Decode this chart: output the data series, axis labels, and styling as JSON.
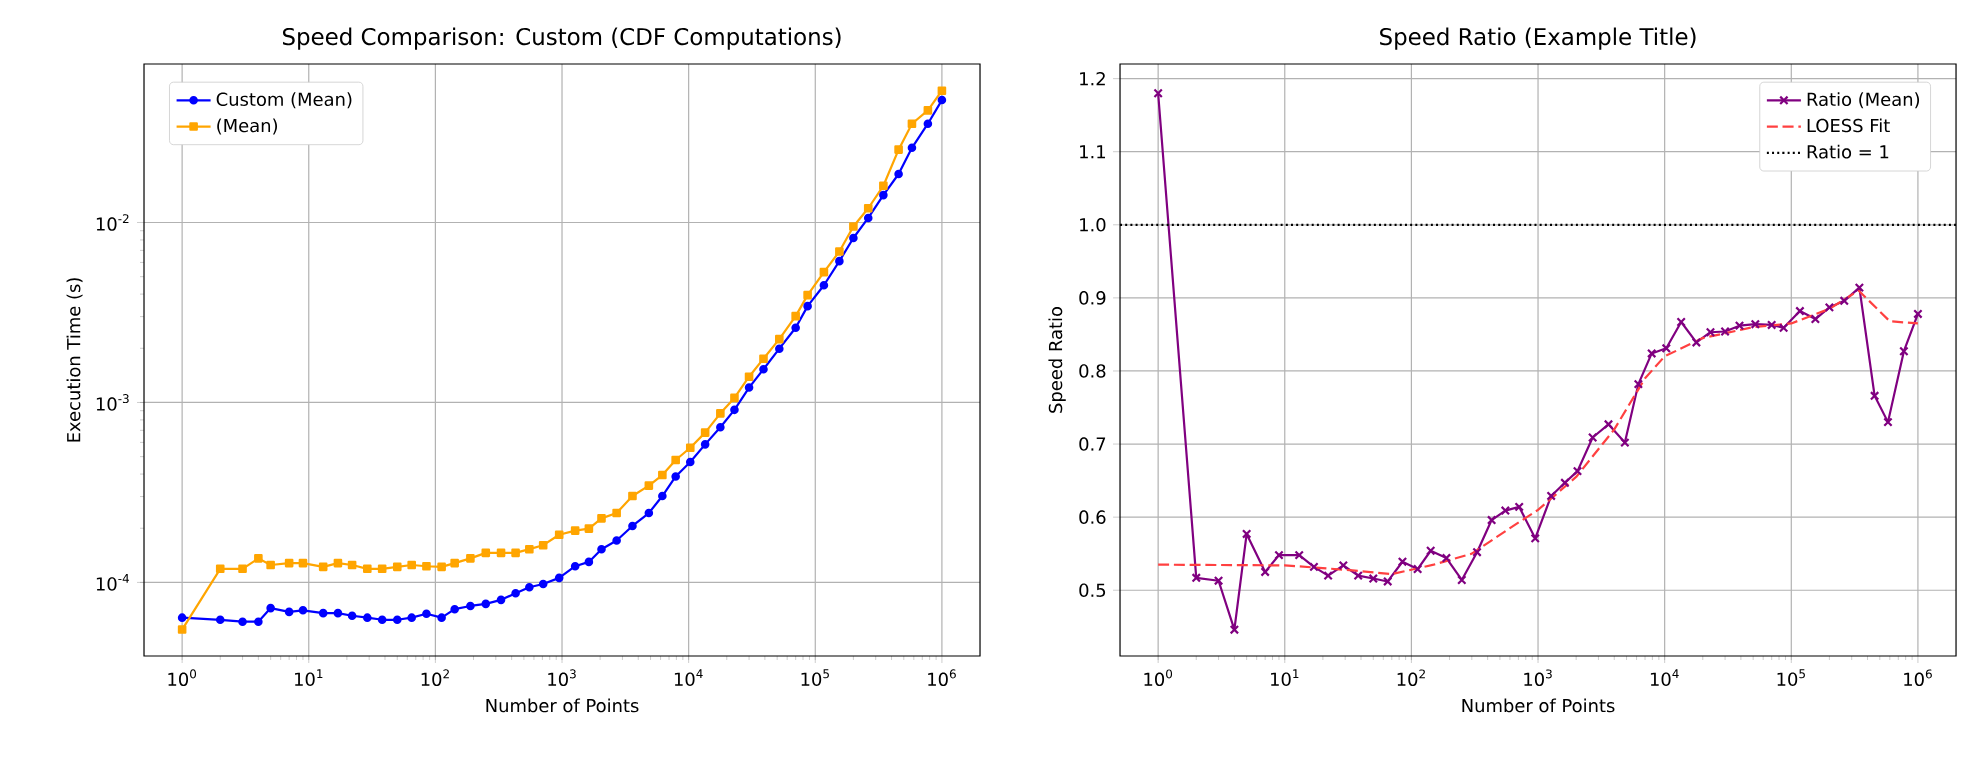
{
  "chart_data": [
    {
      "type": "line",
      "title": "Speed Comparison: Custom (CDF Computations)",
      "xlabel": "Number of Points",
      "ylabel": "Execution Time (s)",
      "x": [
        1,
        2,
        3,
        4,
        5,
        7,
        9,
        13,
        17,
        22,
        29,
        38,
        50,
        65,
        85,
        112,
        142,
        189,
        250,
        330,
        430,
        552,
        710,
        950,
        1270,
        1630,
        2050,
        2700,
        3600,
        4850,
        6200,
        7900,
        10300,
        13500,
        17800,
        23000,
        30000,
        39000,
        52000,
        70000,
        87000,
        117000,
        155000,
        200000,
        262000,
        345000,
        455000,
        580000,
        775000,
        1000000
      ],
      "series": [
        {
          "name": "Custom (Mean)",
          "color": "#0000ff",
          "marker": "circle",
          "values": [
            6.37e-05,
            6.2e-05,
            6.05e-05,
            6.05e-05,
            7.2e-05,
            6.86e-05,
            7e-05,
            6.75e-05,
            6.75e-05,
            6.53e-05,
            6.37e-05,
            6.2e-05,
            6.2e-05,
            6.37e-05,
            6.7e-05,
            6.37e-05,
            7.1e-05,
            7.4e-05,
            7.6e-05,
            8e-05,
            8.7e-05,
            9.4e-05,
            9.8e-05,
            0.000106,
            0.000123,
            0.00013,
            0.000153,
            0.000171,
            0.000206,
            0.000243,
            0.000302,
            0.000388,
            0.000467,
            0.000585,
            0.000728,
            0.00091,
            0.00121,
            0.00153,
            0.00199,
            0.0026,
            0.00343,
            0.00448,
            0.0061,
            0.0082,
            0.0106,
            0.0142,
            0.0186,
            0.026,
            0.0354,
            0.0479
          ]
        },
        {
          "name": "(Mean)",
          "color": "#ffa500",
          "marker": "square",
          "values": [
            5.47e-05,
            0.000119,
            0.000119,
            0.000136,
            0.000125,
            0.000128,
            0.000128,
            0.000122,
            0.000128,
            0.000125,
            0.000119,
            0.000119,
            0.000122,
            0.000125,
            0.000123,
            0.000122,
            0.000128,
            0.000136,
            0.000146,
            0.000146,
            0.000146,
            0.000153,
            0.000161,
            0.000184,
            0.000194,
            0.000199,
            0.000227,
            0.000243,
            0.000302,
            0.000345,
            0.000395,
            0.000479,
            0.00056,
            0.00068,
            0.00087,
            0.00106,
            0.00139,
            0.00175,
            0.00225,
            0.00302,
            0.00395,
            0.0053,
            0.0069,
            0.0095,
            0.012,
            0.016,
            0.0254,
            0.0354,
            0.042,
            0.054
          ]
        }
      ],
      "log": "xy",
      "xlim": [
        0.5,
        2000000
      ],
      "ylim": [
        3.9e-05,
        0.076
      ],
      "xticks": [
        {
          "value": 1,
          "label": "10$^{0}$"
        },
        {
          "value": 10,
          "label": "10$^{1}$"
        },
        {
          "value": 100,
          "label": "10$^{2}$"
        },
        {
          "value": 1000,
          "label": "10$^{3}$"
        },
        {
          "value": 10000,
          "label": "10$^{4}$"
        },
        {
          "value": 100000,
          "label": "10$^{5}$"
        },
        {
          "value": 1000000,
          "label": "10$^{6}$"
        }
      ],
      "yticks": [
        {
          "value": 0.0001,
          "label": "10$^{-4}$"
        },
        {
          "value": 0.001,
          "label": "10$^{-3}$"
        },
        {
          "value": 0.01,
          "label": "10$^{-2}$"
        }
      ],
      "grid": true,
      "legend": "top left"
    },
    {
      "type": "line",
      "title": "Speed Ratio (Example Title)",
      "xlabel": "Number of Points",
      "ylabel": "Speed Ratio",
      "x": [
        1,
        2,
        3,
        4,
        5,
        7,
        9,
        13,
        17,
        22,
        29,
        38,
        50,
        65,
        85,
        112,
        142,
        189,
        250,
        330,
        430,
        552,
        710,
        950,
        1270,
        1630,
        2050,
        2700,
        3600,
        4850,
        6200,
        7900,
        10300,
        13500,
        17800,
        23000,
        30000,
        39000,
        52000,
        70000,
        87000,
        117000,
        155000,
        200000,
        262000,
        345000,
        455000,
        580000,
        775000,
        1000000
      ],
      "series": [
        {
          "name": "Ratio (Mean)",
          "color": "#800080",
          "marker": "cross",
          "values": [
            1.18,
            0.517,
            0.513,
            0.446,
            0.577,
            0.525,
            0.548,
            0.548,
            0.532,
            0.52,
            0.534,
            0.52,
            0.516,
            0.512,
            0.539,
            0.529,
            0.554,
            0.544,
            0.514,
            0.552,
            0.596,
            0.609,
            0.614,
            0.571,
            0.629,
            0.647,
            0.663,
            0.709,
            0.727,
            0.702,
            0.782,
            0.824,
            0.831,
            0.867,
            0.839,
            0.853,
            0.854,
            0.862,
            0.864,
            0.863,
            0.859,
            0.882,
            0.871,
            0.887,
            0.896,
            0.914,
            0.766,
            0.73,
            0.827,
            0.878
          ]
        },
        {
          "name": "LOESS Fit",
          "color": "#ff4040",
          "marker": "none",
          "line_style": "dashed",
          "x": [
            1,
            10,
            30,
            70,
            150,
            300,
            600,
            1000,
            2000,
            4000,
            7000,
            10000,
            20000,
            50000,
            100000,
            200000,
            340000,
            600000,
            1000000
          ],
          "values": [
            0.535,
            0.534,
            0.528,
            0.522,
            0.535,
            0.55,
            0.585,
            0.61,
            0.655,
            0.72,
            0.79,
            0.82,
            0.845,
            0.86,
            0.865,
            0.885,
            0.91,
            0.868,
            0.865
          ]
        }
      ],
      "ref_lines": [
        {
          "axis": "y",
          "value": 1,
          "label": "Ratio = 1",
          "color": "#000000",
          "line_style": "dotted"
        }
      ],
      "log": "x",
      "xlim": [
        0.5,
        2000000
      ],
      "ylim": [
        0.41,
        1.22
      ],
      "xticks": [
        {
          "value": 1,
          "label": "10$^{0}$"
        },
        {
          "value": 10,
          "label": "10$^{1}$"
        },
        {
          "value": 100,
          "label": "10$^{2}$"
        },
        {
          "value": 1000,
          "label": "10$^{3}$"
        },
        {
          "value": 10000,
          "label": "10$^{4}$"
        },
        {
          "value": 100000,
          "label": "10$^{5}$"
        },
        {
          "value": 1000000,
          "label": "10$^{6}$"
        }
      ],
      "yticks": [
        0.5,
        0.6,
        0.7,
        0.8,
        0.9,
        {
          "value": 1,
          "label": "1.0"
        },
        1.1,
        1.2
      ],
      "grid": true,
      "legend": "top right"
    }
  ]
}
